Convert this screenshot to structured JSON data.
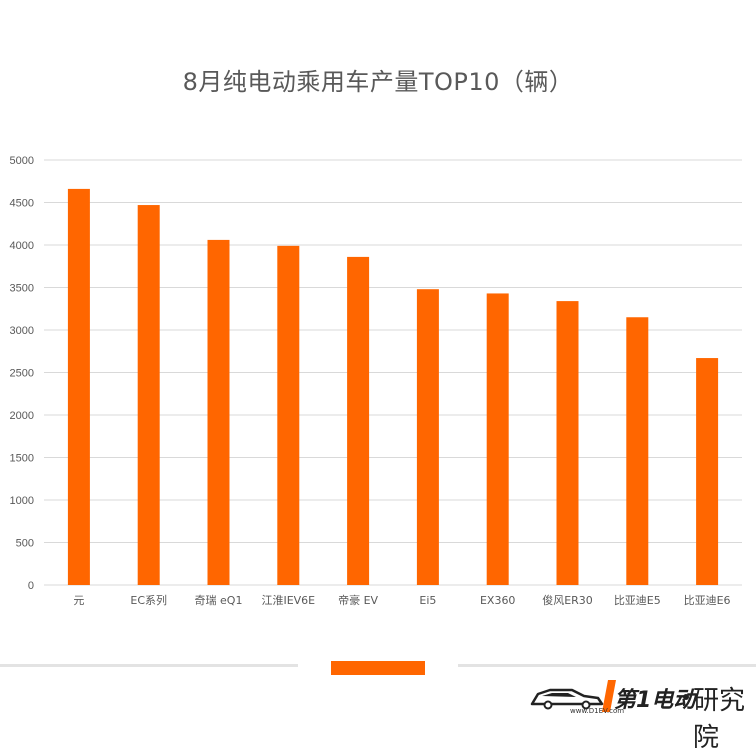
{
  "chart_data": {
    "type": "bar",
    "title": "8月纯电动乘用车产量TOP10（辆）",
    "categories": [
      "元",
      "EC系列",
      "奇瑞 eQ1",
      "江淮IEV6E",
      "帝豪 EV",
      "Ei5",
      "EX360",
      "俊风ER30",
      "比亚迪E5",
      "比亚迪E6"
    ],
    "values": [
      4660,
      4470,
      4060,
      3990,
      3860,
      3480,
      3430,
      3340,
      3150,
      2670
    ],
    "ylim": [
      0,
      5000
    ],
    "yticks": [
      "0",
      "500",
      "1000",
      "1500",
      "2000",
      "2500",
      "3000",
      "3500",
      "4000",
      "4500",
      "5000"
    ],
    "grid": true,
    "legend": "none",
    "bar_color": "#ff6600",
    "grid_color": "#d9d9d9",
    "axis_label_color": "#595959"
  },
  "footer": {
    "accent_color": "#ff6600",
    "brand_text": "第1电动",
    "brand_sub": "研究院",
    "brand_url": "www.D1EV.com"
  }
}
